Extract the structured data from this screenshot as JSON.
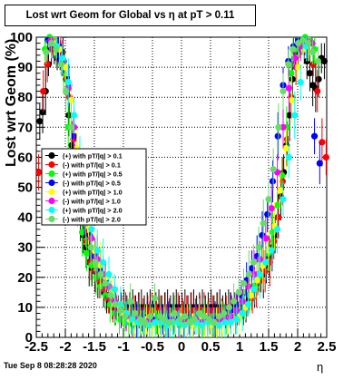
{
  "chart_data": {
    "type": "scatter",
    "title": "Lost wrt Geom for Global vs  η at pT > 0.11",
    "xlabel": "η",
    "ylabel": "Lost wrt Geom (%)",
    "xlim": [
      -2.5,
      2.5
    ],
    "ylim": [
      0,
      100
    ],
    "x_ticks": [
      "-2.5",
      "-2",
      "-1.5",
      "-1",
      "-0.5",
      "0",
      "0.5",
      "1",
      "1.5",
      "2",
      "2.5"
    ],
    "y_ticks": [
      "0",
      "10",
      "20",
      "30",
      "40",
      "50",
      "60",
      "70",
      "80",
      "90",
      "100"
    ],
    "grid": true,
    "legend_position": "left-center",
    "timestamp": "Tue Sep  8 08:28:28 2020",
    "series": [
      {
        "name": "(+) with pT/|q| > 0.1",
        "color": "#000000",
        "x": [
          -2.44,
          -2.39,
          -2.34,
          -2.29,
          -2.24,
          -2.19,
          -2.14,
          -2.09,
          -2.04,
          -1.99,
          -1.94,
          -1.89,
          -1.84,
          -1.79,
          -1.74,
          -1.69,
          -1.64,
          -1.59,
          -1.54,
          -1.49,
          -1.44,
          -1.39,
          -1.34,
          -1.29,
          -1.24,
          -1.19,
          -1.14,
          -1.09,
          -1.04,
          -0.99,
          -0.94,
          -0.89,
          -0.84,
          -0.79,
          -0.74,
          -0.69,
          -0.64,
          -0.59,
          -0.54,
          -0.49,
          -0.44,
          -0.39,
          -0.34,
          -0.29,
          -0.24,
          -0.19,
          -0.14,
          -0.09,
          -0.04,
          0.01,
          0.06,
          0.11,
          0.16,
          0.21,
          0.26,
          0.31,
          0.36,
          0.41,
          0.46,
          0.51,
          0.56,
          0.61,
          0.66,
          0.71,
          0.76,
          0.81,
          0.86,
          0.91,
          0.96,
          1.01,
          1.06,
          1.11,
          1.16,
          1.21,
          1.26,
          1.31,
          1.36,
          1.41,
          1.46,
          1.51,
          1.56,
          1.61,
          1.66,
          1.71,
          1.76,
          1.81,
          1.86,
          1.91,
          1.96,
          2.01,
          2.06,
          2.11,
          2.16,
          2.21,
          2.26,
          2.31,
          2.36,
          2.41,
          2.46
        ],
        "y": [
          72,
          75,
          82,
          91,
          96,
          97,
          93,
          94,
          95,
          86,
          74,
          64,
          56,
          47,
          40,
          34,
          30,
          25,
          23,
          22,
          21,
          18,
          15,
          14,
          12,
          11,
          10,
          10,
          10,
          10,
          10,
          10,
          10,
          10,
          10,
          10,
          10,
          10,
          10,
          10,
          10,
          10,
          10,
          10,
          10,
          10,
          10,
          10,
          10,
          10,
          10,
          10,
          10,
          10,
          10,
          10,
          10,
          10,
          10,
          10,
          10,
          10,
          10,
          10,
          10,
          10,
          10,
          10,
          10,
          11,
          11,
          11,
          13,
          14,
          16,
          18,
          20,
          21,
          24,
          27,
          30,
          34,
          40,
          47,
          55,
          64,
          74,
          86,
          95,
          97,
          98,
          96,
          92,
          88,
          84,
          83,
          86,
          93,
          92
        ]
      },
      {
        "name": "(-) with pT/|q| > 0.1",
        "color": "#ff0000",
        "x": [
          -2.46,
          -2.38,
          -2.31,
          -2.23,
          -2.16,
          -2.08,
          -2.01,
          -1.93,
          -1.86,
          -1.78,
          -1.71,
          -1.63,
          -1.56,
          -1.48,
          -1.41,
          -1.33,
          -1.26,
          -1.18,
          -1.11,
          -1.03,
          -0.96,
          -0.88,
          -0.81,
          -0.73,
          -0.66,
          -0.58,
          -0.51,
          -0.43,
          -0.36,
          -0.28,
          -0.21,
          -0.13,
          -0.06,
          0.02,
          0.09,
          0.17,
          0.24,
          0.32,
          0.39,
          0.47,
          0.54,
          0.62,
          0.69,
          0.77,
          0.84,
          0.92,
          0.99,
          1.07,
          1.14,
          1.22,
          1.29,
          1.37,
          1.44,
          1.52,
          1.59,
          1.67,
          1.74,
          1.82,
          1.89,
          1.97,
          2.04,
          2.12,
          2.19,
          2.27,
          2.34,
          2.42,
          2.49
        ],
        "y": [
          55,
          82,
          91,
          98,
          99,
          97,
          90,
          80,
          66,
          52,
          40,
          32,
          25,
          22,
          19,
          16,
          13,
          11,
          10,
          9,
          9,
          9,
          9,
          9,
          9,
          9,
          9,
          9,
          9,
          9,
          9,
          9,
          9,
          9,
          9,
          9,
          9,
          9,
          9,
          9,
          9,
          9,
          9,
          9,
          9,
          9,
          9,
          10,
          11,
          13,
          16,
          19,
          22,
          25,
          32,
          40,
          52,
          66,
          80,
          90,
          97,
          99,
          98,
          91,
          82,
          65,
          60
        ]
      },
      {
        "name": "(+) with pT/|q| > 0.5",
        "color": "#00ff00",
        "x": [
          -2.35,
          -2.27,
          -2.19,
          -2.11,
          -2.03,
          -1.95,
          -1.87,
          -1.79,
          -1.71,
          -1.63,
          -1.55,
          -1.47,
          -1.39,
          -1.31,
          -1.23,
          -1.15,
          -1.07,
          -0.99,
          -0.91,
          -0.83,
          -0.75,
          -0.67,
          -0.59,
          -0.51,
          -0.43,
          -0.35,
          -0.27,
          -0.19,
          -0.11,
          -0.03,
          0.05,
          0.13,
          0.21,
          0.29,
          0.37,
          0.45,
          0.53,
          0.61,
          0.69,
          0.77,
          0.85,
          0.93,
          1.01,
          1.09,
          1.17,
          1.25,
          1.33,
          1.41,
          1.49,
          1.57,
          1.65,
          1.73,
          1.81,
          1.89,
          1.97,
          2.05,
          2.13,
          2.21,
          2.29
        ],
        "y": [
          96,
          100,
          99,
          96,
          88,
          70,
          54,
          44,
          35,
          28,
          24,
          20,
          17,
          14,
          11,
          8,
          6,
          5,
          5,
          4,
          6,
          5,
          4,
          6,
          5,
          4,
          5,
          6,
          5,
          4,
          5,
          6,
          4,
          5,
          5,
          6,
          4,
          5,
          6,
          5,
          6,
          7,
          9,
          11,
          14,
          17,
          20,
          24,
          28,
          35,
          44,
          54,
          70,
          88,
          96,
          99,
          100,
          99,
          96
        ]
      },
      {
        "name": "(-) with pT/|q| > 0.5",
        "color": "#0000ff",
        "x": [
          -2.3,
          -2.21,
          -2.12,
          -2.03,
          -1.94,
          -1.85,
          -1.76,
          -1.67,
          -1.58,
          -1.49,
          -1.4,
          -1.31,
          -1.22,
          -1.13,
          -1.04,
          -0.95,
          -0.86,
          -0.77,
          -0.68,
          -0.59,
          -0.5,
          -0.41,
          -0.32,
          -0.23,
          -0.14,
          -0.05,
          0.04,
          0.13,
          0.22,
          0.31,
          0.4,
          0.49,
          0.58,
          0.67,
          0.76,
          0.85,
          0.94,
          1.03,
          1.12,
          1.21,
          1.3,
          1.39,
          1.48,
          1.57,
          1.66,
          1.75,
          1.84,
          1.93,
          2.02,
          2.11,
          2.2,
          2.29,
          2.38
        ],
        "y": [
          99,
          98,
          97,
          92,
          84,
          67,
          52,
          41,
          34,
          27,
          23,
          19,
          14,
          11,
          9,
          7,
          6,
          6,
          6,
          7,
          6,
          5,
          6,
          6,
          5,
          6,
          6,
          5,
          6,
          7,
          6,
          6,
          6,
          7,
          8,
          9,
          11,
          14,
          19,
          23,
          27,
          34,
          41,
          52,
          67,
          84,
          92,
          97,
          99,
          99,
          98,
          67,
          58
        ]
      },
      {
        "name": "(+) with pT/|q| > 1.0",
        "color": "#ffff00",
        "x": [
          -2.2,
          -2.1,
          -2.0,
          -1.9,
          -1.8,
          -1.7,
          -1.6,
          -1.5,
          -1.4,
          -1.3,
          -1.2,
          -1.1,
          -1.0,
          -0.9,
          -0.8,
          -0.7,
          -0.6,
          -0.5,
          -0.4,
          -0.3,
          -0.2,
          -0.1,
          0.0,
          0.1,
          0.2,
          0.3,
          0.4,
          0.5,
          0.6,
          0.7,
          0.8,
          0.9,
          1.0,
          1.1,
          1.2,
          1.3,
          1.4,
          1.5,
          1.6,
          1.7,
          1.8,
          1.9,
          2.0,
          2.1,
          2.2
        ],
        "y": [
          98,
          96,
          90,
          79,
          63,
          49,
          37,
          29,
          24,
          20,
          15,
          11,
          8,
          6,
          5,
          5,
          6,
          4,
          5,
          6,
          4,
          5,
          6,
          5,
          4,
          6,
          5,
          4,
          5,
          6,
          5,
          6,
          7,
          10,
          14,
          19,
          24,
          29,
          37,
          49,
          63,
          79,
          90,
          96,
          98
        ]
      },
      {
        "name": "(-) with pT/|q| > 1.0",
        "color": "#ff00ff",
        "x": [
          -2.25,
          -2.15,
          -2.05,
          -1.95,
          -1.85,
          -1.75,
          -1.65,
          -1.55,
          -1.45,
          -1.35,
          -1.25,
          -1.15,
          -1.05,
          -0.95,
          -0.85,
          -0.75,
          -0.65,
          -0.55,
          -0.45,
          -0.35,
          -0.25,
          -0.15,
          -0.05,
          0.05,
          0.15,
          0.25,
          0.35,
          0.45,
          0.55,
          0.65,
          0.75,
          0.85,
          0.95,
          1.05,
          1.15,
          1.25,
          1.35,
          1.45,
          1.55,
          1.65,
          1.75,
          1.85,
          1.95,
          2.05,
          2.15,
          2.25
        ],
        "y": [
          99,
          97,
          93,
          83,
          70,
          55,
          43,
          33,
          26,
          21,
          17,
          12,
          9,
          7,
          6,
          6,
          5,
          6,
          5,
          6,
          5,
          6,
          5,
          6,
          5,
          6,
          5,
          6,
          5,
          6,
          6,
          7,
          9,
          12,
          17,
          21,
          26,
          33,
          43,
          55,
          70,
          83,
          93,
          97,
          99,
          98
        ]
      },
      {
        "name": "(+) with pT/|q| > 2.0",
        "color": "#00ffff",
        "x": [
          -2.15,
          -2.05,
          -1.95,
          -1.85,
          -1.75,
          -1.65,
          -1.55,
          -1.45,
          -1.35,
          -1.25,
          -1.15,
          -1.05,
          -0.95,
          -0.85,
          -0.75,
          -0.65,
          -0.55,
          -0.45,
          -0.35,
          -0.25,
          -0.15,
          -0.05,
          0.05,
          0.15,
          0.25,
          0.35,
          0.45,
          0.55,
          0.65,
          0.75,
          0.85,
          0.95,
          1.05,
          1.15,
          1.25,
          1.35,
          1.45,
          1.55,
          1.65,
          1.75,
          1.85,
          1.95,
          2.05,
          2.15
        ],
        "y": [
          97,
          93,
          85,
          74,
          60,
          46,
          36,
          29,
          25,
          21,
          16,
          11,
          8,
          6,
          5,
          5,
          4,
          5,
          5,
          4,
          5,
          5,
          4,
          5,
          5,
          4,
          5,
          5,
          4,
          5,
          5,
          6,
          8,
          11,
          16,
          21,
          25,
          29,
          36,
          46,
          60,
          74,
          85,
          97
        ]
      },
      {
        "name": "(-) with pT/|q| > 2.0",
        "color": "#66dd66",
        "x": [
          -2.33,
          -2.24,
          -2.16,
          -2.07,
          -1.99,
          -1.9,
          -1.82,
          -1.73,
          -1.65,
          -1.56,
          -1.48,
          -1.39,
          -1.31,
          -1.22,
          -1.14,
          -1.05,
          -0.97,
          -0.88,
          -0.8,
          -0.71,
          -0.63,
          -0.54,
          -0.46,
          -0.37,
          -0.29,
          -0.2,
          -0.12,
          -0.03,
          0.05,
          0.14,
          0.22,
          0.31,
          0.39,
          0.48,
          0.56,
          0.65,
          0.73,
          0.82,
          0.9,
          0.99,
          1.07,
          1.16,
          1.24,
          1.33,
          1.41,
          1.5,
          1.58,
          1.67,
          1.75,
          1.84,
          1.92,
          2.01,
          2.09,
          2.18,
          2.26,
          2.35
        ],
        "y": [
          95,
          98,
          96,
          91,
          82,
          70,
          56,
          46,
          38,
          30,
          25,
          21,
          18,
          14,
          11,
          9,
          7,
          12,
          8,
          6,
          5,
          7,
          13,
          7,
          6,
          5,
          8,
          6,
          7,
          5,
          6,
          8,
          7,
          6,
          5,
          7,
          8,
          10,
          12,
          15,
          18,
          21,
          25,
          30,
          38,
          46,
          56,
          70,
          82,
          91,
          96,
          98,
          99,
          98,
          95,
          92
        ]
      }
    ]
  },
  "colors": {
    "frame": "#000000",
    "grid": "#000000",
    "background": "#ffffff"
  }
}
